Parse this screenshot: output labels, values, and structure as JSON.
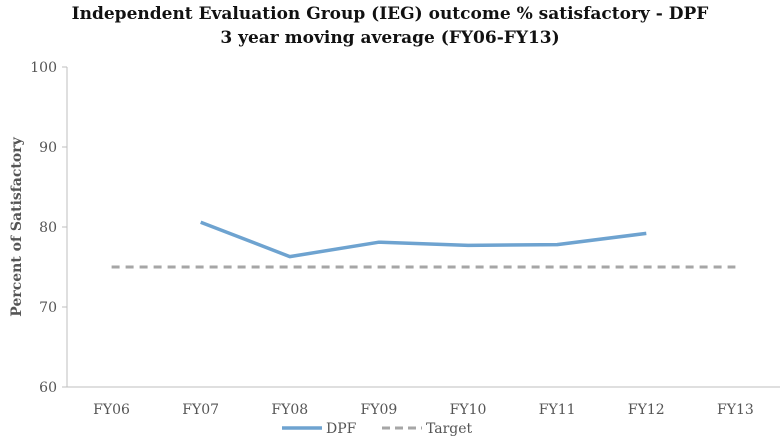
{
  "chart_data": {
    "type": "line",
    "title_line1": "Independent Evaluation Group (IEG) outcome % satisfactory - DPF",
    "title_line2": "3 year moving average (FY06-FY13)",
    "ylabel": "Percent of Satisfactory",
    "xlabel": "",
    "categories": [
      "FY06",
      "FY07",
      "FY08",
      "FY09",
      "FY10",
      "FY11",
      "FY12",
      "FY13"
    ],
    "ylim": [
      60,
      100
    ],
    "yticks": [
      60,
      70,
      80,
      90,
      100
    ],
    "grid": false,
    "legend_position": "bottom",
    "series": [
      {
        "name": "DPF",
        "style": "solid",
        "color": "#6ea3d0",
        "values": [
          null,
          80.6,
          76.3,
          78.1,
          77.7,
          77.8,
          79.2,
          null
        ]
      },
      {
        "name": "Target",
        "style": "dashed",
        "color": "#a6a6a6",
        "values": [
          75,
          75,
          75,
          75,
          75,
          75,
          75,
          75
        ]
      }
    ]
  }
}
